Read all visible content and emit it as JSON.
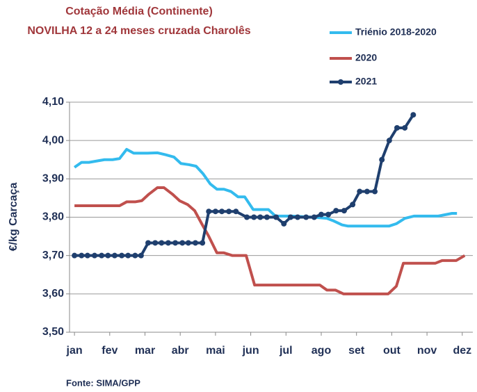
{
  "chart_data": {
    "type": "line",
    "title": [
      "Cotação Média (Continente)",
      "NOVILHA 12 a 24 meses cruzada Charolês"
    ],
    "y_label": "€/kg Carcaça",
    "source": "Fonte:  SIMA/GPP",
    "xlim": [
      0.86,
      12.3
    ],
    "xticks": [
      {
        "value": 1,
        "label": "jan"
      },
      {
        "value": 2,
        "label": "fev"
      },
      {
        "value": 3,
        "label": "mar"
      },
      {
        "value": 4,
        "label": "abr"
      },
      {
        "value": 5,
        "label": "mai"
      },
      {
        "value": 6,
        "label": "jun"
      },
      {
        "value": 7,
        "label": "jul"
      },
      {
        "value": 8,
        "label": "ago"
      },
      {
        "value": 9,
        "label": "set"
      },
      {
        "value": 10,
        "label": "out"
      },
      {
        "value": 11,
        "label": "nov"
      },
      {
        "value": 12,
        "label": "dez"
      }
    ],
    "ylim": [
      3.5,
      4.1
    ],
    "yticks": [
      {
        "value": 3.5,
        "label": "3,50"
      },
      {
        "value": 3.6,
        "label": "3,60"
      },
      {
        "value": 3.7,
        "label": "3,70"
      },
      {
        "value": 3.8,
        "label": "3,80"
      },
      {
        "value": 3.9,
        "label": "3,90"
      },
      {
        "value": 4.0,
        "label": "4,00"
      },
      {
        "value": 4.1,
        "label": "4,10"
      }
    ],
    "grid": true,
    "series": [
      {
        "name": "Triénio 2018-2020",
        "color": "#33bbee",
        "markers": false,
        "x": [
          1.0,
          1.2,
          1.41,
          1.85,
          2.08,
          2.28,
          2.48,
          2.68,
          3.07,
          3.35,
          3.58,
          3.82,
          4.02,
          4.25,
          4.45,
          4.65,
          4.85,
          5.04,
          5.24,
          5.44,
          5.64,
          5.83,
          6.07,
          6.5,
          6.7,
          7.17,
          7.77,
          8.16,
          8.36,
          8.59,
          8.75,
          9.93,
          10.13,
          10.37,
          10.64,
          11.32,
          11.71,
          11.85
        ],
        "values": [
          3.93,
          3.943,
          3.943,
          3.95,
          3.95,
          3.953,
          3.977,
          3.967,
          3.967,
          3.968,
          3.963,
          3.957,
          3.94,
          3.937,
          3.933,
          3.913,
          3.887,
          3.873,
          3.873,
          3.867,
          3.853,
          3.853,
          3.82,
          3.82,
          3.803,
          3.803,
          3.8,
          3.797,
          3.79,
          3.78,
          3.777,
          3.777,
          3.783,
          3.797,
          3.803,
          3.803,
          3.81,
          3.81
        ]
      },
      {
        "name": "2020",
        "color": "#c0504d",
        "markers": false,
        "x": [
          1.0,
          2.28,
          2.48,
          2.72,
          2.91,
          3.11,
          3.35,
          3.54,
          3.78,
          3.98,
          4.21,
          4.41,
          4.61,
          4.81,
          5.04,
          5.24,
          5.48,
          5.87,
          6.11,
          7.96,
          8.16,
          8.4,
          8.63,
          9.9,
          10.13,
          10.33,
          11.24,
          11.43,
          11.83,
          12.07
        ],
        "values": [
          3.83,
          3.83,
          3.84,
          3.84,
          3.843,
          3.86,
          3.877,
          3.877,
          3.86,
          3.843,
          3.833,
          3.817,
          3.783,
          3.75,
          3.707,
          3.707,
          3.7,
          3.7,
          3.623,
          3.623,
          3.61,
          3.61,
          3.6,
          3.6,
          3.62,
          3.68,
          3.68,
          3.687,
          3.687,
          3.7
        ]
      },
      {
        "name": "2021",
        "color": "#1f3f6e",
        "markers": true,
        "x": [
          1.0,
          1.2,
          1.37,
          1.57,
          1.77,
          1.95,
          2.14,
          2.34,
          2.52,
          2.72,
          2.89,
          3.09,
          3.29,
          3.47,
          3.66,
          3.86,
          4.06,
          4.23,
          4.43,
          4.63,
          4.81,
          5.0,
          5.18,
          5.38,
          5.58,
          5.89,
          6.09,
          6.27,
          6.46,
          6.72,
          6.94,
          7.13,
          7.33,
          7.57,
          7.8,
          8.0,
          8.2,
          8.42,
          8.65,
          8.89,
          9.09,
          9.3,
          9.52,
          9.72,
          9.93,
          10.15,
          10.37,
          10.61
        ],
        "values": [
          3.7,
          3.7,
          3.7,
          3.7,
          3.7,
          3.7,
          3.7,
          3.7,
          3.7,
          3.7,
          3.7,
          3.733,
          3.733,
          3.733,
          3.733,
          3.733,
          3.733,
          3.733,
          3.733,
          3.733,
          3.815,
          3.815,
          3.815,
          3.815,
          3.815,
          3.8,
          3.8,
          3.8,
          3.8,
          3.8,
          3.783,
          3.8,
          3.8,
          3.8,
          3.8,
          3.807,
          3.807,
          3.817,
          3.817,
          3.833,
          3.867,
          3.867,
          3.867,
          3.95,
          4.0,
          4.033,
          4.033,
          4.067
        ]
      }
    ]
  }
}
